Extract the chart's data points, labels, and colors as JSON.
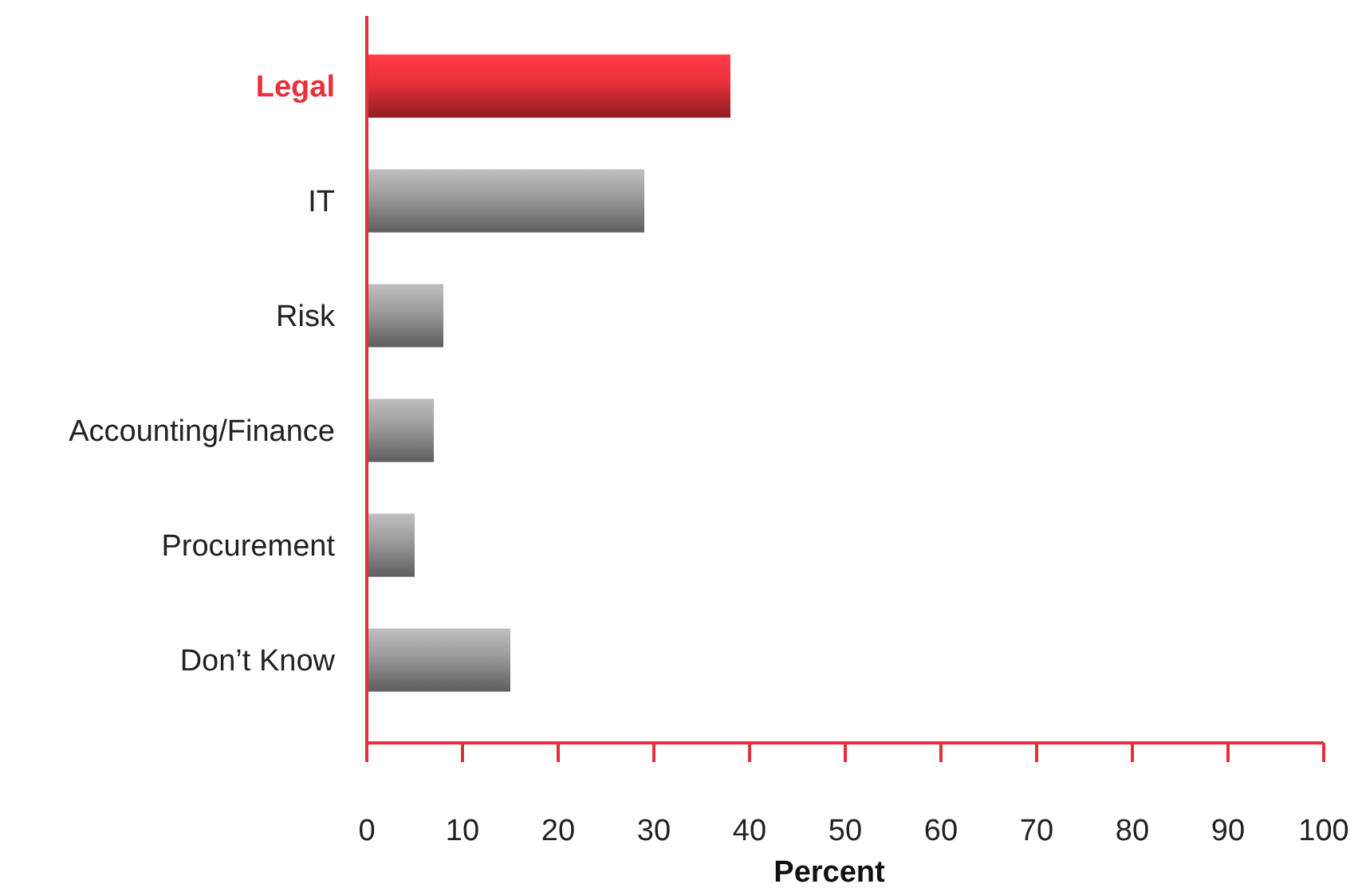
{
  "chart_data": {
    "type": "bar",
    "orientation": "horizontal",
    "xlabel": "Percent",
    "categories": [
      "Legal",
      "IT",
      "Risk",
      "Accounting/Finance",
      "Procurement",
      "Don’t Know"
    ],
    "values": [
      38,
      29,
      8,
      7,
      5,
      15
    ],
    "colors": [
      "#e8303a",
      "#9a9a9a",
      "#9a9a9a",
      "#9a9a9a",
      "#9a9a9a",
      "#9a9a9a"
    ],
    "xlim": [
      0,
      100
    ],
    "xticks": [
      0,
      10,
      20,
      30,
      40,
      50,
      60,
      70,
      80,
      90,
      100
    ]
  }
}
